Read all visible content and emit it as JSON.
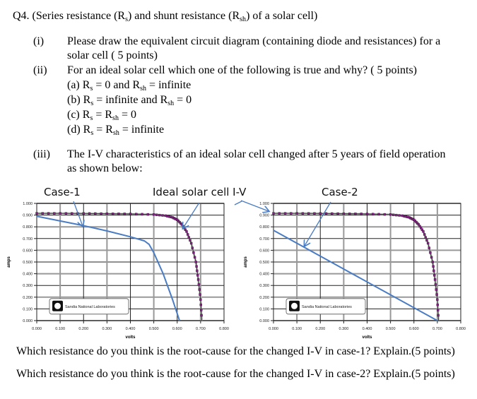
{
  "question": {
    "title_prefix": "Q4. (Series resistance (R",
    "title_sub_s": "s",
    "title_mid": ") and shunt resistance (R",
    "title_sub_sh": "sh",
    "title_suffix": ") of a solar cell)",
    "parts": [
      {
        "num": "(i)",
        "line1": "Please draw the equivalent circuit diagram (containing diode and resistances) for a",
        "line2": "solar cell  ( 5 points)"
      },
      {
        "num": "(ii)",
        "line1": "For an ideal solar cell which one of the following is true and why? ( 5 points)"
      },
      {
        "num": "(iii)",
        "line1": "The I-V characteristics of an ideal solar cell changed after 5 years of field operation",
        "line2": "as shown below:"
      }
    ],
    "options": [
      {
        "label": "(a) R",
        "s": "s",
        "mid": " = 0 and R",
        "sh": "sh",
        "end": " = infinite"
      },
      {
        "label": "(b) R",
        "s": "s",
        "mid": " = infinite and R",
        "sh": "sh",
        "end": " = 0"
      },
      {
        "label": "(c) R",
        "s": "s",
        "mid": " = R",
        "sh": "sh",
        "end": " = 0"
      },
      {
        "label": "(d) R",
        "s": "s",
        "mid": " = R",
        "sh": "sh",
        "end": " = infinite"
      }
    ],
    "followups": [
      "Which resistance do you think is the root-cause for the changed I-V in case-1? Explain.(5 points)",
      "Which resistance do you think is the root-cause for the changed I-V in case-2? Explain.(5 points)"
    ]
  },
  "callouts": {
    "case1": "Case-1",
    "ideal": "Ideal solar cell I-V",
    "case2": "Case-2"
  },
  "chart_data": [
    {
      "type": "line",
      "title": "Case-1",
      "xlabel": "volts",
      "ylabel": "amps",
      "xlim": [
        0,
        0.8
      ],
      "ylim": [
        0,
        1.0
      ],
      "x_ticks": [
        "0.000",
        "0.100",
        "0.200",
        "0.300",
        "0.400",
        "0.500",
        "0.600",
        "0.700",
        "0.800"
      ],
      "y_ticks": [
        "0.000",
        "0.100",
        "0.200",
        "0.300",
        "0.400",
        "0.500",
        "0.600",
        "0.700",
        "0.800",
        "0.900",
        "1.000"
      ],
      "grid": true,
      "watermark": "Sandia National Laboratories",
      "series": [
        {
          "name": "Ideal solar cell I-V",
          "color": "#8b1a8b",
          "marker": "square",
          "x": [
            0.0,
            0.1,
            0.2,
            0.3,
            0.4,
            0.5,
            0.55,
            0.58,
            0.6,
            0.62,
            0.64,
            0.66,
            0.68,
            0.69,
            0.7,
            0.705
          ],
          "y": [
            0.915,
            0.915,
            0.914,
            0.912,
            0.91,
            0.905,
            0.895,
            0.88,
            0.86,
            0.82,
            0.76,
            0.66,
            0.5,
            0.35,
            0.18,
            0.0
          ]
        },
        {
          "name": "Case-1",
          "color": "#4a7cc4",
          "x": [
            0.0,
            0.1,
            0.2,
            0.3,
            0.4,
            0.46,
            0.48,
            0.5,
            0.54,
            0.58,
            0.61
          ],
          "y": [
            0.89,
            0.85,
            0.81,
            0.765,
            0.715,
            0.68,
            0.65,
            0.58,
            0.4,
            0.18,
            0.0
          ]
        }
      ]
    },
    {
      "type": "line",
      "title": "Case-2",
      "xlabel": "volts",
      "ylabel": "amps",
      "xlim": [
        0,
        0.8
      ],
      "ylim": [
        0,
        1.0
      ],
      "x_ticks": [
        "0.000",
        "0.100",
        "0.200",
        "0.300",
        "0.400",
        "0.500",
        "0.600",
        "0.700",
        "0.800"
      ],
      "y_ticks": [
        "0.000",
        "0.100",
        "0.200",
        "0.300",
        "0.400",
        "0.500",
        "0.600",
        "0.700",
        "0.800",
        "0.900",
        "1.000"
      ],
      "grid": true,
      "watermark": "Sandia National Laboratories",
      "series": [
        {
          "name": "Ideal solar cell I-V",
          "color": "#8b1a8b",
          "marker": "square",
          "x": [
            0.0,
            0.1,
            0.2,
            0.3,
            0.4,
            0.5,
            0.55,
            0.58,
            0.6,
            0.62,
            0.64,
            0.66,
            0.68,
            0.69,
            0.7,
            0.705
          ],
          "y": [
            0.915,
            0.915,
            0.914,
            0.912,
            0.91,
            0.905,
            0.895,
            0.88,
            0.86,
            0.82,
            0.76,
            0.66,
            0.5,
            0.35,
            0.18,
            0.0
          ]
        },
        {
          "name": "Case-2",
          "color": "#4a7cc4",
          "x": [
            0.0,
            0.7
          ],
          "y": [
            0.77,
            0.0
          ]
        }
      ]
    }
  ]
}
